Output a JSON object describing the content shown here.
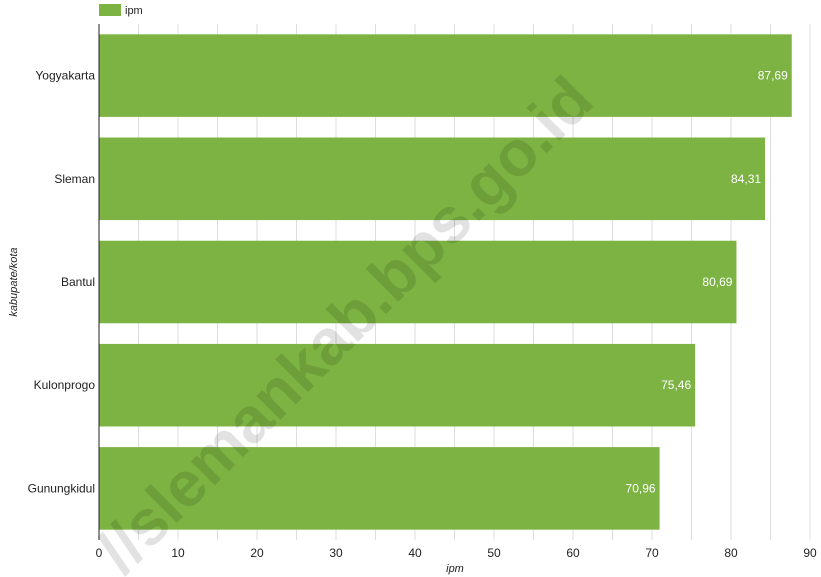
{
  "chart_data": {
    "type": "bar",
    "orientation": "horizontal",
    "categories": [
      "Yogyakarta",
      "Sleman",
      "Bantul",
      "Kulonprogo",
      "Gunungkidul"
    ],
    "series": [
      {
        "name": "ipm",
        "values": [
          87.69,
          84.31,
          80.69,
          75.46,
          70.96
        ]
      }
    ],
    "data_labels": [
      "87,69",
      "84,31",
      "80,69",
      "75,46",
      "70,96"
    ],
    "xlabel": "ipm",
    "ylabel": "kabupate/kota",
    "xlim": [
      0,
      90
    ],
    "x_ticks": [
      0,
      10,
      20,
      30,
      40,
      50,
      60,
      70,
      80,
      90
    ],
    "grid": true,
    "legend_position": "top-left",
    "bar_color": "#7cb342",
    "watermark": "//slemankab.bps.go.id"
  }
}
